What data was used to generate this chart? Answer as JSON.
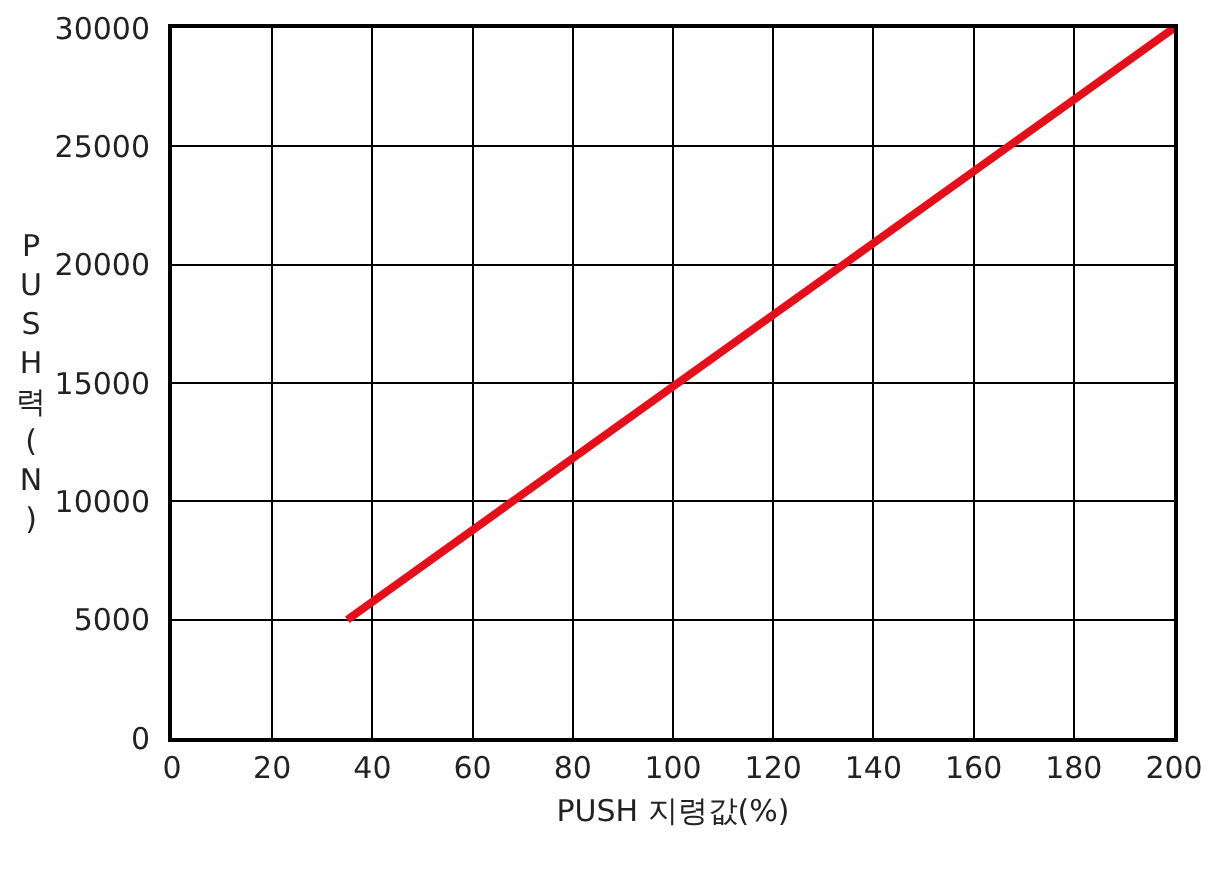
{
  "chart_data": {
    "type": "line",
    "xlabel": "PUSH 지령값(%)",
    "ylabel": "PUSH력(N)",
    "x": [
      35,
      200
    ],
    "series": [
      {
        "color": "#e3101b",
        "values": [
          5000,
          30000
        ]
      }
    ],
    "xlim": [
      0,
      200
    ],
    "xticks": [
      0,
      20,
      40,
      60,
      80,
      100,
      120,
      140,
      160,
      180,
      200
    ],
    "ylim": [
      0,
      30000
    ],
    "yticks": [
      0,
      5000,
      10000,
      15000,
      20000,
      25000,
      30000
    ],
    "grid": true,
    "marker": "none",
    "line_style": "solid"
  }
}
